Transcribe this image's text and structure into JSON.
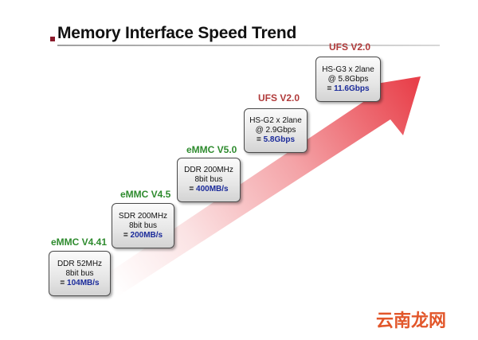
{
  "title": "Memory Interface Speed Trend",
  "colors": {
    "title_bullet": "#8b1a2b",
    "emmc_label": "#2e8b2e",
    "ufs_label": "#b03a3a",
    "speed_value": "#1a2a9a",
    "arrow_start": "#ffffff",
    "arrow_end": "#e8404a"
  },
  "stages": [
    {
      "label": "eMMC V4.41",
      "lines": [
        "DDR 52MHz",
        "8bit bus"
      ],
      "speed": "104MB/s"
    },
    {
      "label": "eMMC V4.5",
      "lines": [
        "SDR 200MHz",
        "8bit bus"
      ],
      "speed": "200MB/s"
    },
    {
      "label": "eMMC V5.0",
      "lines": [
        "DDR 200MHz",
        "8bit bus"
      ],
      "speed": "400MB/s"
    },
    {
      "label": "UFS V2.0",
      "lines": [
        "HS-G2 x 2lane",
        "@ 2.9Gbps"
      ],
      "speed": "5.8Gbps"
    },
    {
      "label": "UFS V2.0",
      "lines": [
        "HS-G3 x 2lane",
        "@ 5.8Gbps"
      ],
      "speed": "11.6Gbps"
    }
  ],
  "speed_prefix": "= ",
  "watermark": "云南龙网"
}
